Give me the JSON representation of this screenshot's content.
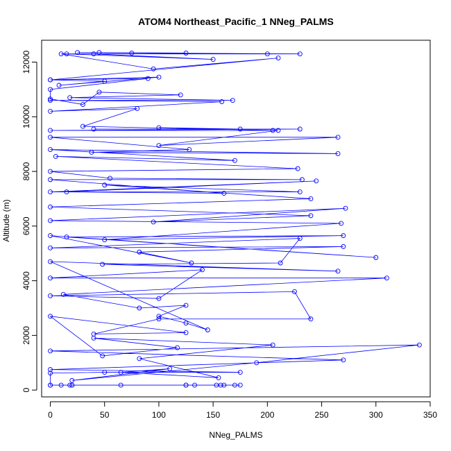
{
  "chart_data": {
    "type": "line",
    "title": "ATOM4 Northeast_Pacific_1 NNeg_PALMS",
    "xlabel": "NNeg_PALMS",
    "ylabel": "Altitude (m)",
    "xlim": [
      -8,
      350
    ],
    "ylim": [
      -250,
      12800
    ],
    "x_ticks": [
      0,
      50,
      100,
      150,
      200,
      250,
      300,
      350
    ],
    "y_ticks": [
      0,
      2000,
      4000,
      6000,
      8000,
      10000,
      12000
    ],
    "grid": false,
    "legend": "none",
    "series_color": "#0000ff",
    "marker": "open-circle",
    "points": [
      [
        0,
        180
      ],
      [
        10,
        180
      ],
      [
        18,
        180
      ],
      [
        20,
        180
      ],
      [
        125,
        180
      ],
      [
        175,
        180
      ],
      [
        133,
        180
      ],
      [
        160,
        180
      ],
      [
        125,
        180
      ],
      [
        157,
        180
      ],
      [
        153,
        180
      ],
      [
        170,
        180
      ],
      [
        65,
        180
      ],
      [
        20,
        180
      ],
      [
        0,
        180
      ],
      [
        0,
        620
      ],
      [
        50,
        650
      ],
      [
        175,
        650
      ],
      [
        0,
        750
      ],
      [
        270,
        1100
      ],
      [
        0,
        1430
      ],
      [
        340,
        1650
      ],
      [
        190,
        1000
      ],
      [
        20,
        350
      ],
      [
        110,
        780
      ],
      [
        65,
        650
      ],
      [
        155,
        450
      ],
      [
        82,
        1150
      ],
      [
        205,
        1650
      ],
      [
        40,
        1900
      ],
      [
        117,
        1550
      ],
      [
        48,
        1250
      ],
      [
        0,
        2700
      ],
      [
        125,
        2100
      ],
      [
        40,
        2050
      ],
      [
        100,
        2600
      ],
      [
        240,
        2600
      ],
      [
        225,
        3600
      ],
      [
        0,
        3450
      ],
      [
        100,
        3350
      ],
      [
        140,
        4400
      ],
      [
        0,
        4100
      ],
      [
        310,
        4100
      ],
      [
        12,
        3500
      ],
      [
        82,
        3000
      ],
      [
        125,
        3100
      ],
      [
        100,
        2700
      ],
      [
        125,
        2450
      ],
      [
        145,
        2200
      ],
      [
        0,
        4700
      ],
      [
        265,
        4350
      ],
      [
        48,
        4600
      ],
      [
        212,
        4650
      ],
      [
        230,
        5550
      ],
      [
        0,
        5200
      ],
      [
        270,
        5250
      ],
      [
        82,
        5050
      ],
      [
        130,
        4650
      ],
      [
        0,
        5650
      ],
      [
        300,
        4850
      ],
      [
        15,
        5600
      ],
      [
        270,
        5650
      ],
      [
        50,
        5500
      ],
      [
        268,
        6100
      ],
      [
        0,
        6200
      ],
      [
        272,
        6650
      ],
      [
        95,
        6150
      ],
      [
        240,
        6380
      ],
      [
        0,
        6700
      ],
      [
        240,
        7000
      ],
      [
        50,
        7500
      ],
      [
        230,
        7250
      ],
      [
        0,
        7250
      ],
      [
        245,
        7650
      ],
      [
        15,
        7250
      ],
      [
        160,
        7200
      ],
      [
        0,
        7700
      ],
      [
        232,
        7700
      ],
      [
        55,
        7750
      ],
      [
        0,
        8000
      ],
      [
        228,
        8100
      ],
      [
        5,
        8550
      ],
      [
        170,
        8400
      ],
      [
        0,
        8800
      ],
      [
        265,
        8650
      ],
      [
        38,
        8700
      ],
      [
        128,
        8800
      ],
      [
        0,
        9250
      ],
      [
        265,
        9250
      ],
      [
        100,
        8950
      ],
      [
        210,
        9500
      ],
      [
        0,
        9500
      ],
      [
        230,
        9550
      ],
      [
        40,
        9550
      ],
      [
        175,
        9550
      ],
      [
        100,
        9600
      ],
      [
        205,
        9500
      ],
      [
        30,
        9650
      ],
      [
        80,
        10300
      ],
      [
        0,
        10200
      ],
      [
        158,
        10550
      ],
      [
        0,
        10600
      ],
      [
        168,
        10600
      ],
      [
        18,
        10700
      ],
      [
        120,
        10800
      ],
      [
        45,
        10900
      ],
      [
        30,
        10450
      ],
      [
        0,
        10650
      ],
      [
        0,
        11000
      ],
      [
        90,
        11400
      ],
      [
        0,
        11350
      ],
      [
        50,
        11300
      ],
      [
        8,
        11150
      ],
      [
        100,
        11450
      ],
      [
        0,
        11350
      ],
      [
        210,
        12150
      ],
      [
        95,
        11750
      ],
      [
        10,
        12300
      ],
      [
        40,
        12300
      ],
      [
        150,
        12100
      ],
      [
        15,
        12300
      ],
      [
        230,
        12300
      ],
      [
        25,
        12350
      ],
      [
        200,
        12300
      ],
      [
        75,
        12330
      ],
      [
        125,
        12330
      ],
      [
        45,
        12350
      ]
    ]
  }
}
